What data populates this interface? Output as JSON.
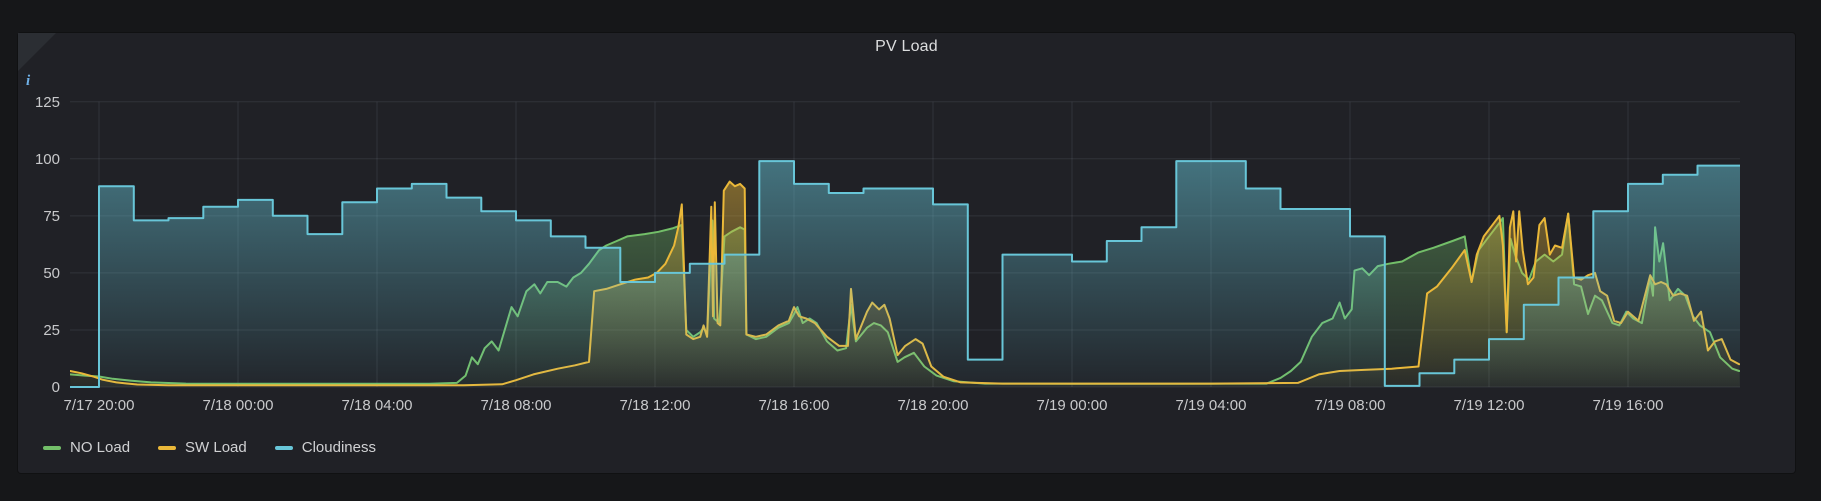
{
  "panel": {
    "title": "PV Load",
    "info_icon": "i"
  },
  "colors": {
    "page_bg": "#161719",
    "panel_bg": "#202126",
    "grid": "rgba(208,214,222,0.10)",
    "tick_text": "#c8c9cb",
    "title_text": "#dcddde",
    "no_load": "#73BF69",
    "sw_load": "#EAB839",
    "cloudiness": "#68C6D8"
  },
  "legend": {
    "items": [
      {
        "label": "NO Load",
        "color": "#73BF69"
      },
      {
        "label": "SW Load",
        "color": "#EAB839"
      },
      {
        "label": "Cloudiness",
        "color": "#68C6D8"
      }
    ]
  },
  "chart_data": {
    "type": "area",
    "title": "PV Load",
    "grid": true,
    "legend_position": "bottom-left",
    "time_origin": "7/17 19:00",
    "x_range_hours": [
      0.17,
      48.2
    ],
    "y_axis": {
      "min": 0,
      "max": 125,
      "ticks": [
        0,
        25,
        50,
        75,
        100,
        125
      ]
    },
    "x_ticks": [
      {
        "t": 1,
        "label": "7/17 20:00"
      },
      {
        "t": 5,
        "label": "7/18 00:00"
      },
      {
        "t": 9,
        "label": "7/18 04:00"
      },
      {
        "t": 13,
        "label": "7/18 08:00"
      },
      {
        "t": 17,
        "label": "7/18 12:00"
      },
      {
        "t": 21,
        "label": "7/18 16:00"
      },
      {
        "t": 25,
        "label": "7/18 20:00"
      },
      {
        "t": 29,
        "label": "7/19 00:00"
      },
      {
        "t": 33,
        "label": "7/19 04:00"
      },
      {
        "t": 37,
        "label": "7/19 08:00"
      },
      {
        "t": 41,
        "label": "7/19 12:00"
      },
      {
        "t": 45,
        "label": "7/19 16:00"
      }
    ],
    "series": [
      {
        "name": "NO Load",
        "color": "#73BF69",
        "mode": "linear",
        "points": [
          [
            0.17,
            5.5
          ],
          [
            0.6,
            5
          ],
          [
            1.0,
            4.6
          ],
          [
            1.4,
            3.6
          ],
          [
            1.9,
            2.8
          ],
          [
            2.5,
            2
          ],
          [
            3.5,
            1.5
          ],
          [
            5.5,
            1.4
          ],
          [
            8,
            1.4
          ],
          [
            10.5,
            1.4
          ],
          [
            11.3,
            1.8
          ],
          [
            11.55,
            5
          ],
          [
            11.73,
            13
          ],
          [
            11.9,
            10
          ],
          [
            12.1,
            17
          ],
          [
            12.3,
            20
          ],
          [
            12.5,
            16
          ],
          [
            12.87,
            35
          ],
          [
            13.05,
            31
          ],
          [
            13.3,
            42
          ],
          [
            13.53,
            45
          ],
          [
            13.7,
            41
          ],
          [
            13.9,
            46
          ],
          [
            14.2,
            46
          ],
          [
            14.45,
            44
          ],
          [
            14.65,
            48
          ],
          [
            14.87,
            50
          ],
          [
            15.1,
            54
          ],
          [
            15.39,
            60
          ],
          [
            15.6,
            62
          ],
          [
            15.9,
            64
          ],
          [
            16.2,
            66
          ],
          [
            16.7,
            67
          ],
          [
            17.1,
            68
          ],
          [
            17.5,
            69.5
          ],
          [
            17.77,
            71
          ],
          [
            17.9,
            25
          ],
          [
            18.1,
            22
          ],
          [
            18.3,
            24
          ],
          [
            18.4,
            26
          ],
          [
            18.5,
            23
          ],
          [
            18.65,
            73
          ],
          [
            18.7,
            30
          ],
          [
            18.85,
            28
          ],
          [
            19.0,
            66
          ],
          [
            19.2,
            68
          ],
          [
            19.45,
            70
          ],
          [
            19.58,
            69
          ],
          [
            19.63,
            23
          ],
          [
            19.9,
            21
          ],
          [
            20.2,
            22
          ],
          [
            20.55,
            26
          ],
          [
            20.85,
            28
          ],
          [
            21.0,
            32
          ],
          [
            21.1,
            35
          ],
          [
            21.25,
            28
          ],
          [
            21.45,
            30
          ],
          [
            21.65,
            28
          ],
          [
            21.95,
            20
          ],
          [
            22.25,
            16
          ],
          [
            22.5,
            17
          ],
          [
            22.64,
            36
          ],
          [
            22.78,
            20
          ],
          [
            23.1,
            26
          ],
          [
            23.3,
            28
          ],
          [
            23.5,
            27
          ],
          [
            23.7,
            24
          ],
          [
            23.98,
            11
          ],
          [
            24.18,
            13
          ],
          [
            24.45,
            15
          ],
          [
            24.75,
            9
          ],
          [
            25.1,
            5
          ],
          [
            25.6,
            2.5
          ],
          [
            26.5,
            1.5
          ],
          [
            29,
            1.4
          ],
          [
            32,
            1.4
          ],
          [
            34.6,
            1.5
          ],
          [
            35.0,
            4
          ],
          [
            35.3,
            7
          ],
          [
            35.58,
            11
          ],
          [
            35.9,
            22
          ],
          [
            36.2,
            28
          ],
          [
            36.5,
            30
          ],
          [
            36.7,
            37
          ],
          [
            36.85,
            30
          ],
          [
            37.05,
            34
          ],
          [
            37.13,
            51
          ],
          [
            37.35,
            52
          ],
          [
            37.55,
            49
          ],
          [
            37.8,
            53
          ],
          [
            38.1,
            54
          ],
          [
            38.5,
            55
          ],
          [
            38.97,
            59
          ],
          [
            39.4,
            61
          ],
          [
            39.95,
            64
          ],
          [
            40.3,
            66
          ],
          [
            40.5,
            46
          ],
          [
            40.7,
            60
          ],
          [
            40.95,
            65
          ],
          [
            41.2,
            70
          ],
          [
            41.4,
            74
          ],
          [
            41.51,
            24
          ],
          [
            41.62,
            65
          ],
          [
            41.75,
            58
          ],
          [
            41.95,
            50
          ],
          [
            42.15,
            47
          ],
          [
            42.35,
            55
          ],
          [
            42.6,
            58
          ],
          [
            42.85,
            55
          ],
          [
            43.1,
            58
          ],
          [
            43.28,
            76
          ],
          [
            43.45,
            45
          ],
          [
            43.65,
            44
          ],
          [
            43.85,
            32
          ],
          [
            44.05,
            40
          ],
          [
            44.25,
            38
          ],
          [
            44.55,
            28
          ],
          [
            44.75,
            27
          ],
          [
            44.95,
            33
          ],
          [
            45.15,
            30
          ],
          [
            45.4,
            28
          ],
          [
            45.64,
            48
          ],
          [
            45.72,
            40
          ],
          [
            45.78,
            70
          ],
          [
            45.9,
            55
          ],
          [
            46.01,
            63
          ],
          [
            46.2,
            38
          ],
          [
            46.44,
            43
          ],
          [
            46.65,
            40
          ],
          [
            46.87,
            31
          ],
          [
            47.07,
            27
          ],
          [
            47.36,
            24
          ],
          [
            47.65,
            13
          ],
          [
            48.0,
            8
          ],
          [
            48.2,
            7
          ]
        ]
      },
      {
        "name": "SW Load",
        "color": "#EAB839",
        "mode": "linear",
        "points": [
          [
            0.17,
            7
          ],
          [
            0.5,
            6
          ],
          [
            0.85,
            4.5
          ],
          [
            1.1,
            3.2
          ],
          [
            1.5,
            2
          ],
          [
            2.1,
            1.1
          ],
          [
            3,
            0.8
          ],
          [
            6,
            0.8
          ],
          [
            9,
            0.8
          ],
          [
            11.5,
            0.8
          ],
          [
            12.6,
            1.2
          ],
          [
            13.0,
            3
          ],
          [
            13.5,
            5.5
          ],
          [
            14.2,
            8
          ],
          [
            14.7,
            9.5
          ],
          [
            15.1,
            11
          ],
          [
            15.25,
            42
          ],
          [
            15.6,
            43
          ],
          [
            16.0,
            45
          ],
          [
            16.42,
            47
          ],
          [
            16.8,
            48
          ],
          [
            17.05,
            50
          ],
          [
            17.3,
            54
          ],
          [
            17.55,
            62
          ],
          [
            17.67,
            70
          ],
          [
            17.77,
            80
          ],
          [
            17.9,
            23
          ],
          [
            18.1,
            21
          ],
          [
            18.3,
            22
          ],
          [
            18.4,
            27
          ],
          [
            18.5,
            22
          ],
          [
            18.62,
            79
          ],
          [
            18.67,
            31
          ],
          [
            18.72,
            81
          ],
          [
            18.8,
            28
          ],
          [
            18.88,
            27
          ],
          [
            18.98,
            86
          ],
          [
            19.15,
            90
          ],
          [
            19.3,
            88
          ],
          [
            19.45,
            89
          ],
          [
            19.58,
            87
          ],
          [
            19.63,
            23
          ],
          [
            19.9,
            22
          ],
          [
            20.2,
            23
          ],
          [
            20.55,
            27
          ],
          [
            20.85,
            29
          ],
          [
            21.0,
            35
          ],
          [
            21.15,
            31
          ],
          [
            21.35,
            30
          ],
          [
            21.6,
            28
          ],
          [
            21.95,
            22
          ],
          [
            22.3,
            18
          ],
          [
            22.55,
            18
          ],
          [
            22.64,
            43
          ],
          [
            22.78,
            21
          ],
          [
            23.1,
            33
          ],
          [
            23.25,
            37
          ],
          [
            23.45,
            34
          ],
          [
            23.6,
            36
          ],
          [
            23.75,
            30
          ],
          [
            23.98,
            14
          ],
          [
            24.2,
            18
          ],
          [
            24.5,
            21
          ],
          [
            24.7,
            19
          ],
          [
            24.95,
            9
          ],
          [
            25.3,
            4.5
          ],
          [
            25.8,
            2
          ],
          [
            27,
            1.5
          ],
          [
            30,
            1.5
          ],
          [
            33,
            1.5
          ],
          [
            35.5,
            1.8
          ],
          [
            36.1,
            5.5
          ],
          [
            36.7,
            7
          ],
          [
            37.4,
            7.5
          ],
          [
            38.2,
            8
          ],
          [
            38.97,
            9
          ],
          [
            39.22,
            41
          ],
          [
            39.5,
            44
          ],
          [
            39.92,
            52
          ],
          [
            40.3,
            60
          ],
          [
            40.5,
            46
          ],
          [
            40.65,
            58
          ],
          [
            40.85,
            66
          ],
          [
            41.05,
            70
          ],
          [
            41.3,
            75
          ],
          [
            41.4,
            62
          ],
          [
            41.51,
            24
          ],
          [
            41.6,
            70
          ],
          [
            41.7,
            77
          ],
          [
            41.78,
            55
          ],
          [
            41.87,
            77
          ],
          [
            41.97,
            60
          ],
          [
            42.12,
            45
          ],
          [
            42.28,
            48
          ],
          [
            42.45,
            71
          ],
          [
            42.6,
            74
          ],
          [
            42.75,
            58
          ],
          [
            42.9,
            62
          ],
          [
            43.1,
            61
          ],
          [
            43.28,
            76
          ],
          [
            43.45,
            48
          ],
          [
            43.65,
            47
          ],
          [
            43.85,
            49
          ],
          [
            44.05,
            50
          ],
          [
            44.2,
            42
          ],
          [
            44.4,
            40
          ],
          [
            44.6,
            29
          ],
          [
            44.8,
            28
          ],
          [
            45.0,
            33
          ],
          [
            45.3,
            29
          ],
          [
            45.64,
            49
          ],
          [
            45.78,
            45
          ],
          [
            45.95,
            46
          ],
          [
            46.1,
            45
          ],
          [
            46.3,
            40
          ],
          [
            46.5,
            41
          ],
          [
            46.7,
            40
          ],
          [
            46.9,
            29
          ],
          [
            47.1,
            33
          ],
          [
            47.3,
            16
          ],
          [
            47.5,
            20
          ],
          [
            47.7,
            21
          ],
          [
            47.95,
            12
          ],
          [
            48.2,
            10
          ]
        ]
      },
      {
        "name": "Cloudiness",
        "color": "#68C6D8",
        "mode": "step-after",
        "points": [
          [
            0.17,
            0
          ],
          [
            1,
            88
          ],
          [
            2,
            73
          ],
          [
            3,
            74
          ],
          [
            4,
            79
          ],
          [
            5,
            82
          ],
          [
            6,
            75
          ],
          [
            7,
            67
          ],
          [
            8,
            81
          ],
          [
            9,
            87
          ],
          [
            10,
            89
          ],
          [
            11,
            83
          ],
          [
            12,
            77
          ],
          [
            13,
            73
          ],
          [
            14,
            66
          ],
          [
            15,
            61
          ],
          [
            16,
            46
          ],
          [
            17,
            50
          ],
          [
            18,
            54
          ],
          [
            19,
            58
          ],
          [
            20,
            99
          ],
          [
            21,
            89
          ],
          [
            22,
            85
          ],
          [
            23,
            87
          ],
          [
            25,
            80
          ],
          [
            26,
            12
          ],
          [
            27,
            58
          ],
          [
            29,
            55
          ],
          [
            30,
            64
          ],
          [
            31,
            70
          ],
          [
            32,
            99
          ],
          [
            34,
            87
          ],
          [
            35,
            78
          ],
          [
            37,
            66
          ],
          [
            38,
            0.5
          ],
          [
            39,
            6
          ],
          [
            40,
            12
          ],
          [
            41,
            21
          ],
          [
            42,
            36
          ],
          [
            43,
            48
          ],
          [
            44,
            77
          ],
          [
            45,
            89
          ],
          [
            46,
            93
          ],
          [
            47,
            97
          ]
        ]
      }
    ]
  }
}
